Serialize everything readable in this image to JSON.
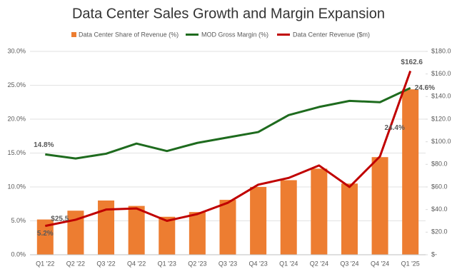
{
  "chart_data": {
    "type": "bar-line",
    "title": "Data Center Sales Growth and Margin Expansion",
    "categories": [
      "Q1 '22",
      "Q2 '22",
      "Q3 '22",
      "Q4 '22",
      "Q1 '23",
      "Q2 '23",
      "Q3 '23",
      "Q4 '23",
      "Q1 '24",
      "Q2 '24",
      "Q3 '24",
      "Q4 '24",
      "Q1 '25"
    ],
    "series": [
      {
        "name": "Data Center Share of Revenue (%)",
        "type": "bar",
        "color": "#ed7d31",
        "values": [
          5.2,
          6.5,
          8.0,
          7.2,
          5.6,
          6.3,
          8.1,
          10.0,
          11.0,
          12.7,
          10.5,
          14.4,
          24.4
        ],
        "value_labels": [
          "5.2%",
          null,
          null,
          null,
          null,
          null,
          null,
          null,
          null,
          null,
          null,
          null,
          "24.4%"
        ]
      },
      {
        "name": "MOD Gross Margin (%)",
        "type": "line",
        "color": "#1e6b1e",
        "values": [
          14.8,
          14.2,
          14.9,
          16.4,
          15.3,
          16.5,
          17.3,
          18.1,
          20.6,
          21.8,
          22.7,
          22.5,
          24.6
        ],
        "value_labels": [
          "14.8%",
          null,
          null,
          null,
          null,
          null,
          null,
          null,
          null,
          null,
          null,
          null,
          "24.6%"
        ]
      },
      {
        "name": "Data Center Revenue ($m)",
        "type": "line",
        "axis": "y2",
        "color": "#c00000",
        "values": [
          25.5,
          31,
          40,
          41,
          30,
          36,
          46,
          62,
          68,
          79,
          60,
          87,
          162.6
        ],
        "value_labels": [
          "$25.5",
          null,
          null,
          null,
          null,
          null,
          null,
          null,
          null,
          null,
          null,
          null,
          "$162.6"
        ]
      }
    ],
    "ylim": [
      0,
      30
    ],
    "yticks": [
      {
        "value": 0,
        "label": "0.0%"
      },
      {
        "value": 5,
        "label": "5.0%"
      },
      {
        "value": 10,
        "label": "10.0%"
      },
      {
        "value": 15,
        "label": "15.0%"
      },
      {
        "value": 20,
        "label": "20.0%"
      },
      {
        "value": 25,
        "label": "25.0%"
      },
      {
        "value": 30,
        "label": "30.0%"
      }
    ],
    "y2lim": [
      0,
      180
    ],
    "y2ticks": [
      {
        "value": 0,
        "label": "$-"
      },
      {
        "value": 20,
        "label": "$20.0"
      },
      {
        "value": 40,
        "label": "$40.0"
      },
      {
        "value": 60,
        "label": "$60.0"
      },
      {
        "value": 80,
        "label": "$80.0"
      },
      {
        "value": 100,
        "label": "$100.0"
      },
      {
        "value": 120,
        "label": "$120.0"
      },
      {
        "value": 140,
        "label": "$140.0"
      },
      {
        "value": 160,
        "label": "$160.0"
      },
      {
        "value": 180,
        "label": "$180.0"
      }
    ],
    "grid": true,
    "legend": "top"
  }
}
